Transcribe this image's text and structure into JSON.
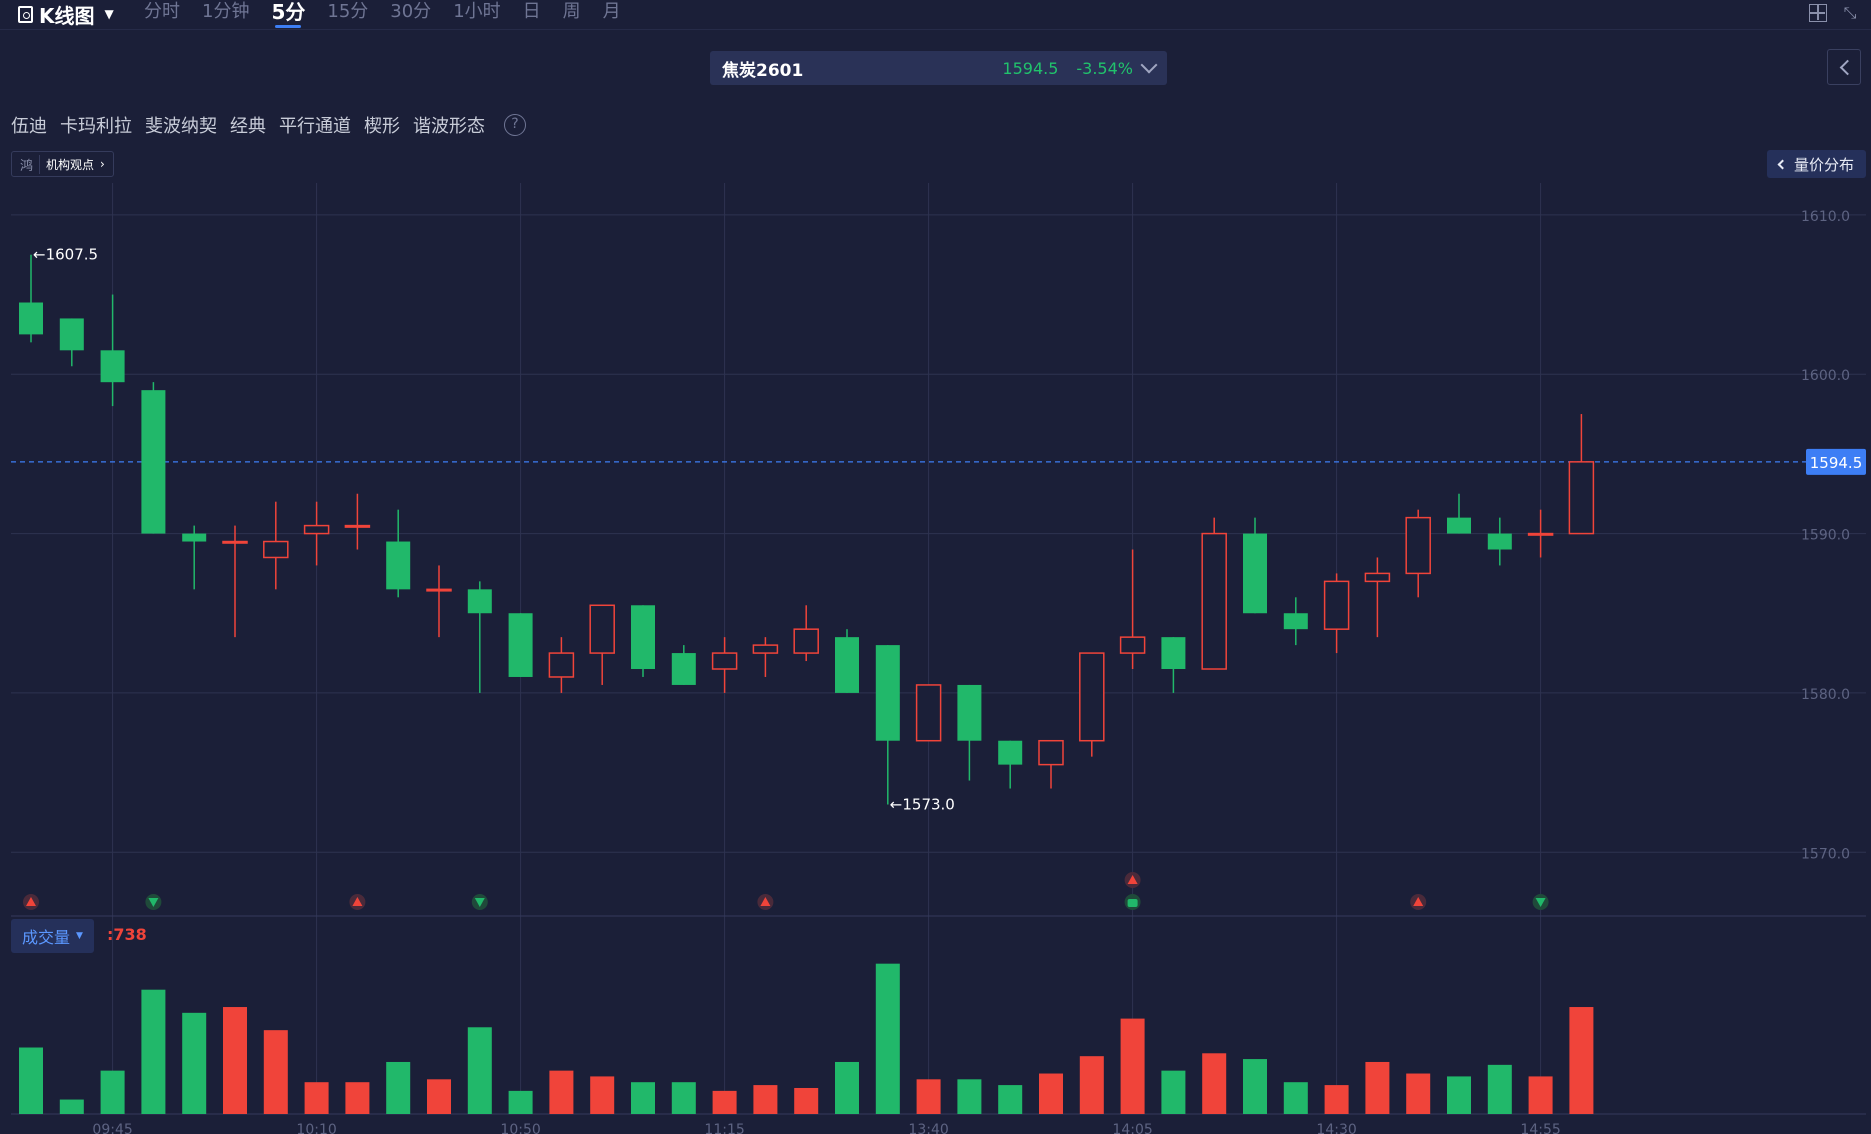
{
  "header": {
    "title": "K线图",
    "periods": [
      "分时",
      "1分钟",
      "5分",
      "15分",
      "30分",
      "1小时",
      "日",
      "周",
      "月"
    ],
    "active_period": "5分"
  },
  "symbol": {
    "name": "焦炭2601",
    "price": "1594.5",
    "change": "-3.54%"
  },
  "tools": [
    "伍迪",
    "卡玛利拉",
    "斐波纳契",
    "经典",
    "平行通道",
    "楔形",
    "谐波形态"
  ],
  "help": "?",
  "institution": {
    "logo": "鸿",
    "label": "机构观点"
  },
  "volume_profile": "量价分布",
  "volume": {
    "label": "成交量",
    "value": ":738"
  },
  "colors": {
    "up": "#f0443a",
    "down": "#21b86a",
    "background": "#1b1f38",
    "grid": "#2e3350",
    "last_price": "#3d7ef5"
  },
  "icons": {
    "signal_up": "red-up-triangle",
    "signal_down": "green-down-triangle",
    "signal_bag": "green-bag-icon"
  },
  "chart_data": {
    "type": "candlestick",
    "ylim": [
      1566,
      1612
    ],
    "y_ticks": [
      "1610.0",
      "1600.0",
      "1590.0",
      "1580.0",
      "1570.0"
    ],
    "x_ticks": [
      "09:45",
      "10:10",
      "10:50",
      "11:15",
      "13:40",
      "14:05",
      "14:30",
      "14:55"
    ],
    "x_tick_bar_index": [
      2,
      7,
      12,
      17,
      22,
      27,
      32,
      37
    ],
    "last_price": "1594.5",
    "high_marker": "1607.5",
    "low_marker": "1573.0",
    "candles": [
      {
        "o": 1604.5,
        "h": 1607.5,
        "l": 1602.0,
        "c": 1602.5
      },
      {
        "o": 1603.5,
        "h": 1603.5,
        "l": 1600.5,
        "c": 1601.5
      },
      {
        "o": 1601.5,
        "h": 1605.0,
        "l": 1598.0,
        "c": 1599.5
      },
      {
        "o": 1599.0,
        "h": 1599.5,
        "l": 1590.0,
        "c": 1590.0
      },
      {
        "o": 1590.0,
        "h": 1590.5,
        "l": 1586.5,
        "c": 1589.5
      },
      {
        "o": 1589.5,
        "h": 1590.5,
        "l": 1583.5,
        "c": 1589.5
      },
      {
        "o": 1588.5,
        "h": 1592.0,
        "l": 1586.5,
        "c": 1589.5
      },
      {
        "o": 1590.0,
        "h": 1592.0,
        "l": 1588.0,
        "c": 1590.5
      },
      {
        "o": 1590.5,
        "h": 1592.5,
        "l": 1589.0,
        "c": 1590.5
      },
      {
        "o": 1589.5,
        "h": 1591.5,
        "l": 1586.0,
        "c": 1586.5
      },
      {
        "o": 1586.5,
        "h": 1588.0,
        "l": 1583.5,
        "c": 1586.5
      },
      {
        "o": 1586.5,
        "h": 1587.0,
        "l": 1580.0,
        "c": 1585.0
      },
      {
        "o": 1585.0,
        "h": 1585.0,
        "l": 1581.0,
        "c": 1581.0
      },
      {
        "o": 1581.0,
        "h": 1583.5,
        "l": 1580.0,
        "c": 1582.5
      },
      {
        "o": 1582.5,
        "h": 1585.5,
        "l": 1580.5,
        "c": 1585.5
      },
      {
        "o": 1585.5,
        "h": 1585.5,
        "l": 1581.0,
        "c": 1581.5
      },
      {
        "o": 1582.5,
        "h": 1583.0,
        "l": 1580.5,
        "c": 1580.5
      },
      {
        "o": 1581.5,
        "h": 1583.5,
        "l": 1580.0,
        "c": 1582.5
      },
      {
        "o": 1582.5,
        "h": 1583.5,
        "l": 1581.0,
        "c": 1583.0
      },
      {
        "o": 1582.5,
        "h": 1585.5,
        "l": 1582.0,
        "c": 1584.0
      },
      {
        "o": 1583.5,
        "h": 1584.0,
        "l": 1580.0,
        "c": 1580.0
      },
      {
        "o": 1583.0,
        "h": 1583.0,
        "l": 1573.0,
        "c": 1577.0
      },
      {
        "o": 1577.0,
        "h": 1580.5,
        "l": 1577.0,
        "c": 1580.5
      },
      {
        "o": 1580.5,
        "h": 1580.5,
        "l": 1574.5,
        "c": 1577.0
      },
      {
        "o": 1577.0,
        "h": 1577.0,
        "l": 1574.0,
        "c": 1575.5
      },
      {
        "o": 1575.5,
        "h": 1577.0,
        "l": 1574.0,
        "c": 1577.0
      },
      {
        "o": 1577.0,
        "h": 1582.5,
        "l": 1576.0,
        "c": 1582.5
      },
      {
        "o": 1582.5,
        "h": 1589.0,
        "l": 1581.5,
        "c": 1583.5
      },
      {
        "o": 1583.5,
        "h": 1583.5,
        "l": 1580.0,
        "c": 1581.5
      },
      {
        "o": 1581.5,
        "h": 1591.0,
        "l": 1581.5,
        "c": 1590.0
      },
      {
        "o": 1590.0,
        "h": 1591.0,
        "l": 1585.0,
        "c": 1585.0
      },
      {
        "o": 1585.0,
        "h": 1586.0,
        "l": 1583.0,
        "c": 1584.0
      },
      {
        "o": 1584.0,
        "h": 1587.5,
        "l": 1582.5,
        "c": 1587.0
      },
      {
        "o": 1587.0,
        "h": 1588.5,
        "l": 1583.5,
        "c": 1587.5
      },
      {
        "o": 1587.5,
        "h": 1591.5,
        "l": 1586.0,
        "c": 1591.0
      },
      {
        "o": 1591.0,
        "h": 1592.5,
        "l": 1590.0,
        "c": 1590.0
      },
      {
        "o": 1590.0,
        "h": 1591.0,
        "l": 1588.0,
        "c": 1589.0
      },
      {
        "o": 1590.0,
        "h": 1591.5,
        "l": 1588.5,
        "c": 1590.0
      },
      {
        "o": 1590.0,
        "h": 1597.5,
        "l": 1590.0,
        "c": 1594.5
      }
    ],
    "volumes": [
      23,
      5,
      15,
      43,
      35,
      37,
      29,
      11,
      11,
      18,
      12,
      30,
      8,
      15,
      13,
      11,
      11,
      8,
      10,
      9,
      18,
      52,
      12,
      12,
      10,
      14,
      20,
      33,
      15,
      21,
      19,
      11,
      10,
      18,
      14,
      13,
      17,
      13,
      37
    ],
    "signals": [
      {
        "bar": 0,
        "type": "up"
      },
      {
        "bar": 3,
        "type": "down"
      },
      {
        "bar": 8,
        "type": "up"
      },
      {
        "bar": 11,
        "type": "down"
      },
      {
        "bar": 18,
        "type": "up"
      },
      {
        "bar": 27,
        "type": "up"
      },
      {
        "bar": 27,
        "type": "bag"
      },
      {
        "bar": 34,
        "type": "up"
      },
      {
        "bar": 37,
        "type": "down"
      }
    ]
  }
}
